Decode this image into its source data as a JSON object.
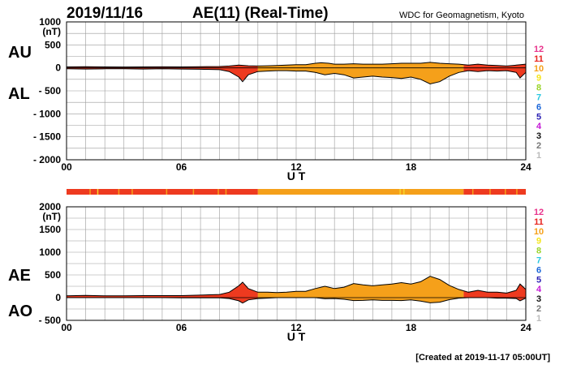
{
  "header": {
    "date": "2019/11/16",
    "title": "AE(11) (Real-Time)",
    "source": "WDC for Geomagnetism, Kyoto"
  },
  "footer": {
    "created": "[Created at 2019-11-17 05:00UT]"
  },
  "colors": {
    "red": "#ee3a1f",
    "orange": "#f5a01a",
    "yellow": "#f7d52a",
    "grid": "#9a9a9a",
    "line": "#000000"
  },
  "station_legend": [
    {
      "label": "12",
      "color": "#e8338c"
    },
    {
      "label": "11",
      "color": "#e8231e"
    },
    {
      "label": "10",
      "color": "#f5a01a"
    },
    {
      "label": "9",
      "color": "#f5e51b"
    },
    {
      "label": "8",
      "color": "#9ad42a"
    },
    {
      "label": "7",
      "color": "#28c7e0"
    },
    {
      "label": "6",
      "color": "#1a66d9"
    },
    {
      "label": "5",
      "color": "#2a1fb3"
    },
    {
      "label": "4",
      "color": "#c418d6"
    },
    {
      "label": "3",
      "color": "#111111"
    },
    {
      "label": "2",
      "color": "#777777"
    },
    {
      "label": "1",
      "color": "#bbbbbb"
    }
  ],
  "station_bar": {
    "segments": [
      {
        "start": 0,
        "end": 10,
        "color": "#ee3a1f"
      },
      {
        "start": 10,
        "end": 20.75,
        "color": "#f5a01a"
      },
      {
        "start": 20.75,
        "end": 24,
        "color": "#ee3a1f"
      }
    ],
    "ticks": [
      {
        "x": 1.2,
        "color": "#f5a01a"
      },
      {
        "x": 1.6,
        "color": "#f7d52a"
      },
      {
        "x": 2.7,
        "color": "#f5a01a"
      },
      {
        "x": 3.4,
        "color": "#f5a01a"
      },
      {
        "x": 5.2,
        "color": "#f5a01a"
      },
      {
        "x": 6.6,
        "color": "#f5a01a"
      },
      {
        "x": 7.9,
        "color": "#f5a01a"
      },
      {
        "x": 8.3,
        "color": "#f5a01a"
      },
      {
        "x": 17.4,
        "color": "#f7d52a"
      },
      {
        "x": 17.6,
        "color": "#f7d52a"
      },
      {
        "x": 21.2,
        "color": "#f5a01a"
      },
      {
        "x": 22.1,
        "color": "#f5a01a"
      },
      {
        "x": 22.9,
        "color": "#f5a01a"
      },
      {
        "x": 23.5,
        "color": "#f5a01a"
      }
    ]
  },
  "chart_data": [
    {
      "type": "area",
      "title": "AU / AL",
      "xlabel": "U T",
      "ylabel": "(nT)",
      "side_labels": [
        "AU",
        "AL"
      ],
      "xlim": [
        0,
        24
      ],
      "ylim": [
        -2000,
        1000
      ],
      "x_ticks": [
        "00",
        "06",
        "12",
        "18",
        "24"
      ],
      "y_ticks": [
        "1000",
        "500",
        "0",
        "- 500",
        "- 1000",
        "- 1500",
        "- 2000"
      ],
      "y_tick_values": [
        1000,
        500,
        0,
        -500,
        -1000,
        -1500,
        -2000
      ],
      "grid": true,
      "series": [
        {
          "name": "AU",
          "x": [
            0,
            1,
            2,
            3,
            4,
            5,
            6,
            7,
            8,
            8.5,
            9,
            9.5,
            10,
            10.5,
            11,
            11.5,
            12,
            12.5,
            13,
            13.3,
            13.7,
            14,
            14.5,
            15,
            15.5,
            16,
            16.5,
            17,
            17.5,
            18,
            18.5,
            19,
            19.5,
            20,
            20.5,
            21,
            21.5,
            22,
            22.5,
            23,
            23.5,
            24
          ],
          "values": [
            20,
            25,
            20,
            18,
            20,
            22,
            20,
            25,
            30,
            40,
            60,
            45,
            40,
            45,
            50,
            60,
            70,
            70,
            100,
            110,
            100,
            80,
            80,
            90,
            80,
            80,
            80,
            90,
            100,
            100,
            100,
            120,
            100,
            90,
            80,
            60,
            80,
            60,
            50,
            40,
            60,
            80
          ]
        },
        {
          "name": "AL",
          "x": [
            0,
            1,
            2,
            3,
            4,
            5,
            6,
            7,
            8,
            8.5,
            9,
            9.2,
            9.5,
            10,
            10.5,
            11,
            11.5,
            12,
            12.5,
            13,
            13.5,
            14,
            14.5,
            15,
            15.5,
            16,
            16.5,
            17,
            17.5,
            18,
            18.5,
            19,
            19.5,
            20,
            20.5,
            21,
            21.5,
            22,
            22.5,
            23,
            23.5,
            23.7,
            24
          ],
          "values": [
            -20,
            -25,
            -20,
            -20,
            -25,
            -20,
            -25,
            -30,
            -40,
            -80,
            -200,
            -300,
            -150,
            -80,
            -70,
            -60,
            -60,
            -70,
            -70,
            -100,
            -150,
            -120,
            -150,
            -220,
            -200,
            -180,
            -200,
            -210,
            -230,
            -200,
            -250,
            -350,
            -300,
            -180,
            -100,
            -60,
            -80,
            -60,
            -70,
            -60,
            -100,
            -220,
            -100
          ]
        }
      ]
    },
    {
      "type": "area",
      "title": "AE / AO",
      "xlabel": "U T",
      "ylabel": "(nT)",
      "side_labels": [
        "AE",
        "AO"
      ],
      "xlim": [
        0,
        24
      ],
      "ylim": [
        -500,
        2000
      ],
      "x_ticks": [
        "00",
        "06",
        "12",
        "18",
        "24"
      ],
      "y_ticks": [
        "2000",
        "1500",
        "1000",
        "500",
        "0",
        "- 500"
      ],
      "y_tick_values": [
        2000,
        1500,
        1000,
        500,
        0,
        -500
      ],
      "grid": true,
      "series": [
        {
          "name": "AE",
          "x": [
            0,
            1,
            2,
            3,
            4,
            5,
            6,
            7,
            8,
            8.5,
            9,
            9.2,
            9.5,
            10,
            10.5,
            11,
            11.5,
            12,
            12.5,
            13,
            13.5,
            14,
            14.5,
            15,
            15.5,
            16,
            16.5,
            17,
            17.5,
            18,
            18.5,
            19,
            19.5,
            20,
            20.5,
            21,
            21.5,
            22,
            22.5,
            23,
            23.5,
            23.7,
            24
          ],
          "values": [
            40,
            50,
            40,
            40,
            45,
            45,
            45,
            55,
            70,
            120,
            260,
            340,
            200,
            120,
            120,
            110,
            120,
            140,
            140,
            200,
            250,
            200,
            230,
            310,
            280,
            260,
            280,
            300,
            330,
            300,
            350,
            470,
            400,
            270,
            180,
            120,
            160,
            120,
            120,
            100,
            160,
            300,
            180
          ]
        },
        {
          "name": "AO",
          "x": [
            0,
            1,
            2,
            3,
            4,
            5,
            6,
            7,
            8,
            8.5,
            9,
            9.2,
            9.5,
            10,
            10.5,
            11,
            11.5,
            12,
            12.5,
            13,
            13.5,
            14,
            14.5,
            15,
            15.5,
            16,
            16.5,
            17,
            17.5,
            18,
            18.5,
            19,
            19.5,
            20,
            20.5,
            21,
            21.5,
            22,
            22.5,
            23,
            23.5,
            23.7,
            24
          ],
          "values": [
            0,
            0,
            0,
            0,
            0,
            0,
            -5,
            -5,
            -5,
            -20,
            -70,
            -120,
            -50,
            -20,
            -10,
            0,
            0,
            0,
            0,
            0,
            -25,
            -20,
            -35,
            -65,
            -60,
            -50,
            -60,
            -60,
            -65,
            -50,
            -75,
            -115,
            -100,
            -45,
            -10,
            0,
            0,
            0,
            -10,
            -10,
            -20,
            -70,
            -10
          ]
        }
      ]
    }
  ]
}
